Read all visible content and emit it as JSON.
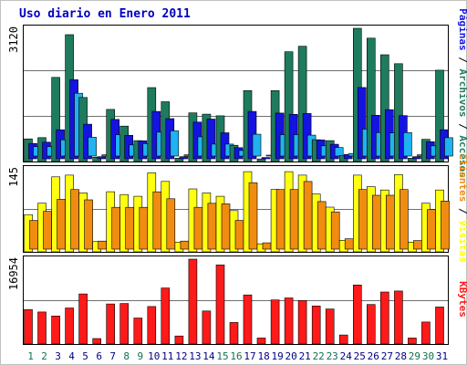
{
  "title": "Uso diario en Enero 2011",
  "colors": {
    "visitas": "#1e7b5e",
    "paginas": "#1414e0",
    "solicitudes": "#1fb3f0",
    "clientes": "#ffff10",
    "visitas_mid": "#f08c10",
    "kbytes": "#ff1a1a",
    "title": "#0000c0",
    "panel_border": "#000000",
    "grid": "#707070",
    "day_weekday": "#000080",
    "day_weekend": "#107050",
    "slash": "#000000"
  },
  "right_labels": {
    "top": [
      {
        "text": "Páginas",
        "color": "#1414e0"
      },
      {
        "text": " / ",
        "color": "#000000"
      },
      {
        "text": "Archivos",
        "color": "#1e7b5e"
      },
      {
        "text": " / ",
        "color": "#000000"
      },
      {
        "text": "Accesos",
        "color": "#1e7b5e"
      }
    ],
    "middle": [
      {
        "text": "Clientes",
        "color": "#f08c10"
      },
      {
        "text": " / ",
        "color": "#000000"
      },
      {
        "text": "Visitas",
        "color": "#ffff10"
      }
    ],
    "bottom": [
      {
        "text": "KBytes",
        "color": "#ff1a1a"
      }
    ]
  },
  "chart_data": {
    "type": "bar",
    "title": "Uso diario en Enero 2011",
    "days": [
      "1",
      "2",
      "3",
      "4",
      "5",
      "6",
      "7",
      "8",
      "9",
      "10",
      "11",
      "12",
      "13",
      "14",
      "15",
      "16",
      "17",
      "18",
      "19",
      "20",
      "21",
      "22",
      "23",
      "24",
      "25",
      "26",
      "27",
      "28",
      "29",
      "30",
      "31"
    ],
    "weekend_days": [
      1,
      2,
      8,
      9,
      15,
      16,
      22,
      23,
      29,
      30
    ],
    "panels": [
      {
        "id": "accesos",
        "ymax_label": "3120",
        "ymax": 3120,
        "series": [
          {
            "name": "Accesos",
            "values": [
              530,
              560,
              1970,
              2970,
              1500,
              100,
              1220,
              830,
              490,
              1730,
              1400,
              80,
              1140,
              1110,
              1070,
              380,
              1660,
              60,
              1660,
              2570,
              2700,
              510,
              490,
              140,
              3120,
              2890,
              2500,
              2290,
              80,
              520,
              2140
            ]
          },
          {
            "name": "Archivos",
            "values": [
              360,
              390,
              680,
              1850,
              810,
              50,
              920,
              550,
              420,
              1110,
              940,
              50,
              860,
              930,
              610,
              260,
              1110,
              30,
              1070,
              1040,
              1060,
              440,
              340,
              100,
              1670,
              1020,
              1150,
              1010,
              50,
              400,
              680
            ]
          },
          {
            "name": "Páginas",
            "values": [
              220,
              220,
              380,
              1470,
              440,
              30,
              500,
              260,
              290,
              560,
              590,
              30,
              450,
              280,
              280,
              130,
              510,
              20,
              500,
              500,
              490,
              240,
              200,
              60,
              630,
              550,
              540,
              550,
              30,
              240,
              430
            ]
          }
        ]
      },
      {
        "id": "visitas",
        "ymax_label": "145",
        "ymax": 145,
        "series": [
          {
            "name": "Visitas",
            "values": [
              65,
              85,
              131,
              134,
              103,
              18,
              105,
              100,
              97,
              138,
              123,
              17,
              110,
              103,
              97,
              72,
              140,
              14,
              109,
              140,
              134,
              101,
              78,
              20,
              134,
              114,
              108,
              135,
              17,
              85,
              108
            ]
          },
          {
            "name": "Clientes",
            "values": [
              50,
              66,
              87,
              104,
              86,
              14,
              73,
              73,
              73,
              100,
              88,
              14,
              73,
              80,
              79,
              50,
              116,
              11,
              104,
              104,
              118,
              83,
              65,
              18,
              104,
              94,
              94,
              104,
              15,
              69,
              84
            ]
          }
        ]
      },
      {
        "id": "kbytes",
        "ymax_label": "16954",
        "ymax": 16954,
        "series": [
          {
            "name": "KBytes",
            "values": [
              6900,
              6400,
              5600,
              7200,
              10000,
              1100,
              8000,
              8100,
              5200,
              7500,
              11200,
              1600,
              16954,
              6600,
              15800,
              4300,
              9800,
              1200,
              8800,
              9200,
              8700,
              7600,
              7000,
              1800,
              11800,
              7900,
              10400,
              10600,
              1200,
              4400,
              7400
            ]
          }
        ]
      }
    ]
  }
}
